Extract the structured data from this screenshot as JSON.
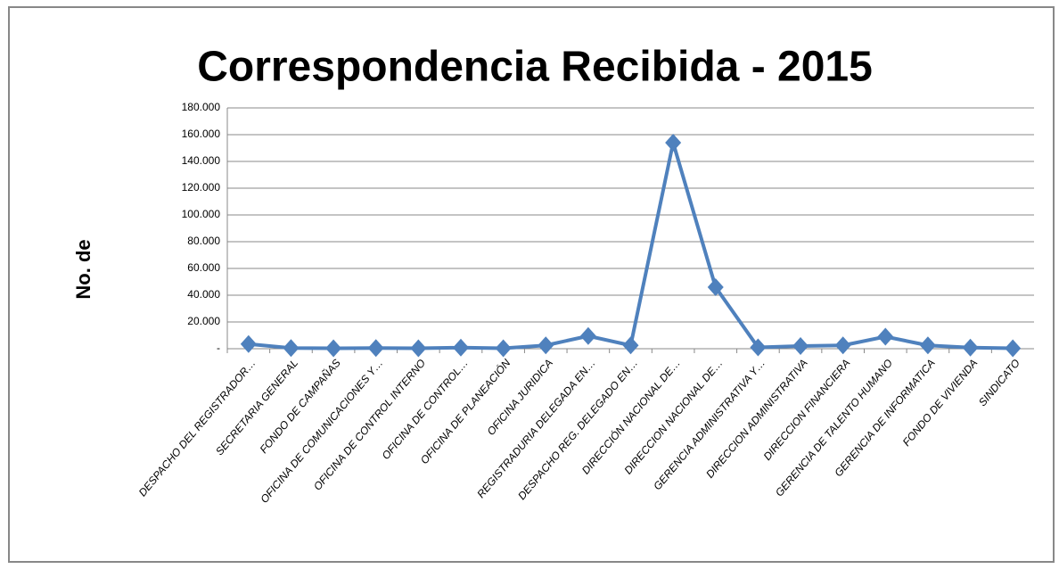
{
  "chart_data": {
    "type": "line",
    "title": "Correspondencia Recibida - 2015",
    "y_label": "No. de",
    "categories": [
      "DESPACHO DEL REGISTRADOR…",
      "SECRETARIA GENERAL",
      "FONDO DE CAMPAÑAS",
      "OFICINA DE COMUNICACIONES Y…",
      "OFICINA DE CONTROL INTERNO",
      "OFICINA DE CONTROL…",
      "OFICINA DE PLANEACIÓN",
      "OFICINA JURIDICA",
      "REGISTRADURIA DELEGADA EN…",
      "DESPACHO REG. DELEGADO EN…",
      "DIRECCIÓN NACIONAL DE…",
      "DIRECCION NACIONAL DE…",
      "GERENCIA ADMINISTRATIVA Y…",
      "DIRECCION ADMINISTRATIVA",
      "DIRECCION FINANCIERA",
      "GERENCIA DE TALENTO HUMANO",
      "GERENCIA DE INFORMATICA",
      "FONDO DE VIVIENDA",
      "SINDICATO"
    ],
    "values": [
      3500,
      500,
      300,
      500,
      300,
      800,
      300,
      2500,
      9500,
      2500,
      154000,
      46000,
      1000,
      2000,
      2500,
      9000,
      2500,
      800,
      300
    ],
    "color": "#4f81bd",
    "ylim": [
      0,
      180000
    ],
    "yticks": [
      {
        "value": 0,
        "label": "-"
      },
      {
        "value": 20000,
        "label": "20.000"
      },
      {
        "value": 40000,
        "label": "40.000"
      },
      {
        "value": 60000,
        "label": "60.000"
      },
      {
        "value": 80000,
        "label": "80.000"
      },
      {
        "value": 100000,
        "label": "100.000"
      },
      {
        "value": 120000,
        "label": "120.000"
      },
      {
        "value": 140000,
        "label": "140.000"
      },
      {
        "value": 160000,
        "label": "160.000"
      },
      {
        "value": 180000,
        "label": "180.000"
      }
    ],
    "grid": true
  }
}
